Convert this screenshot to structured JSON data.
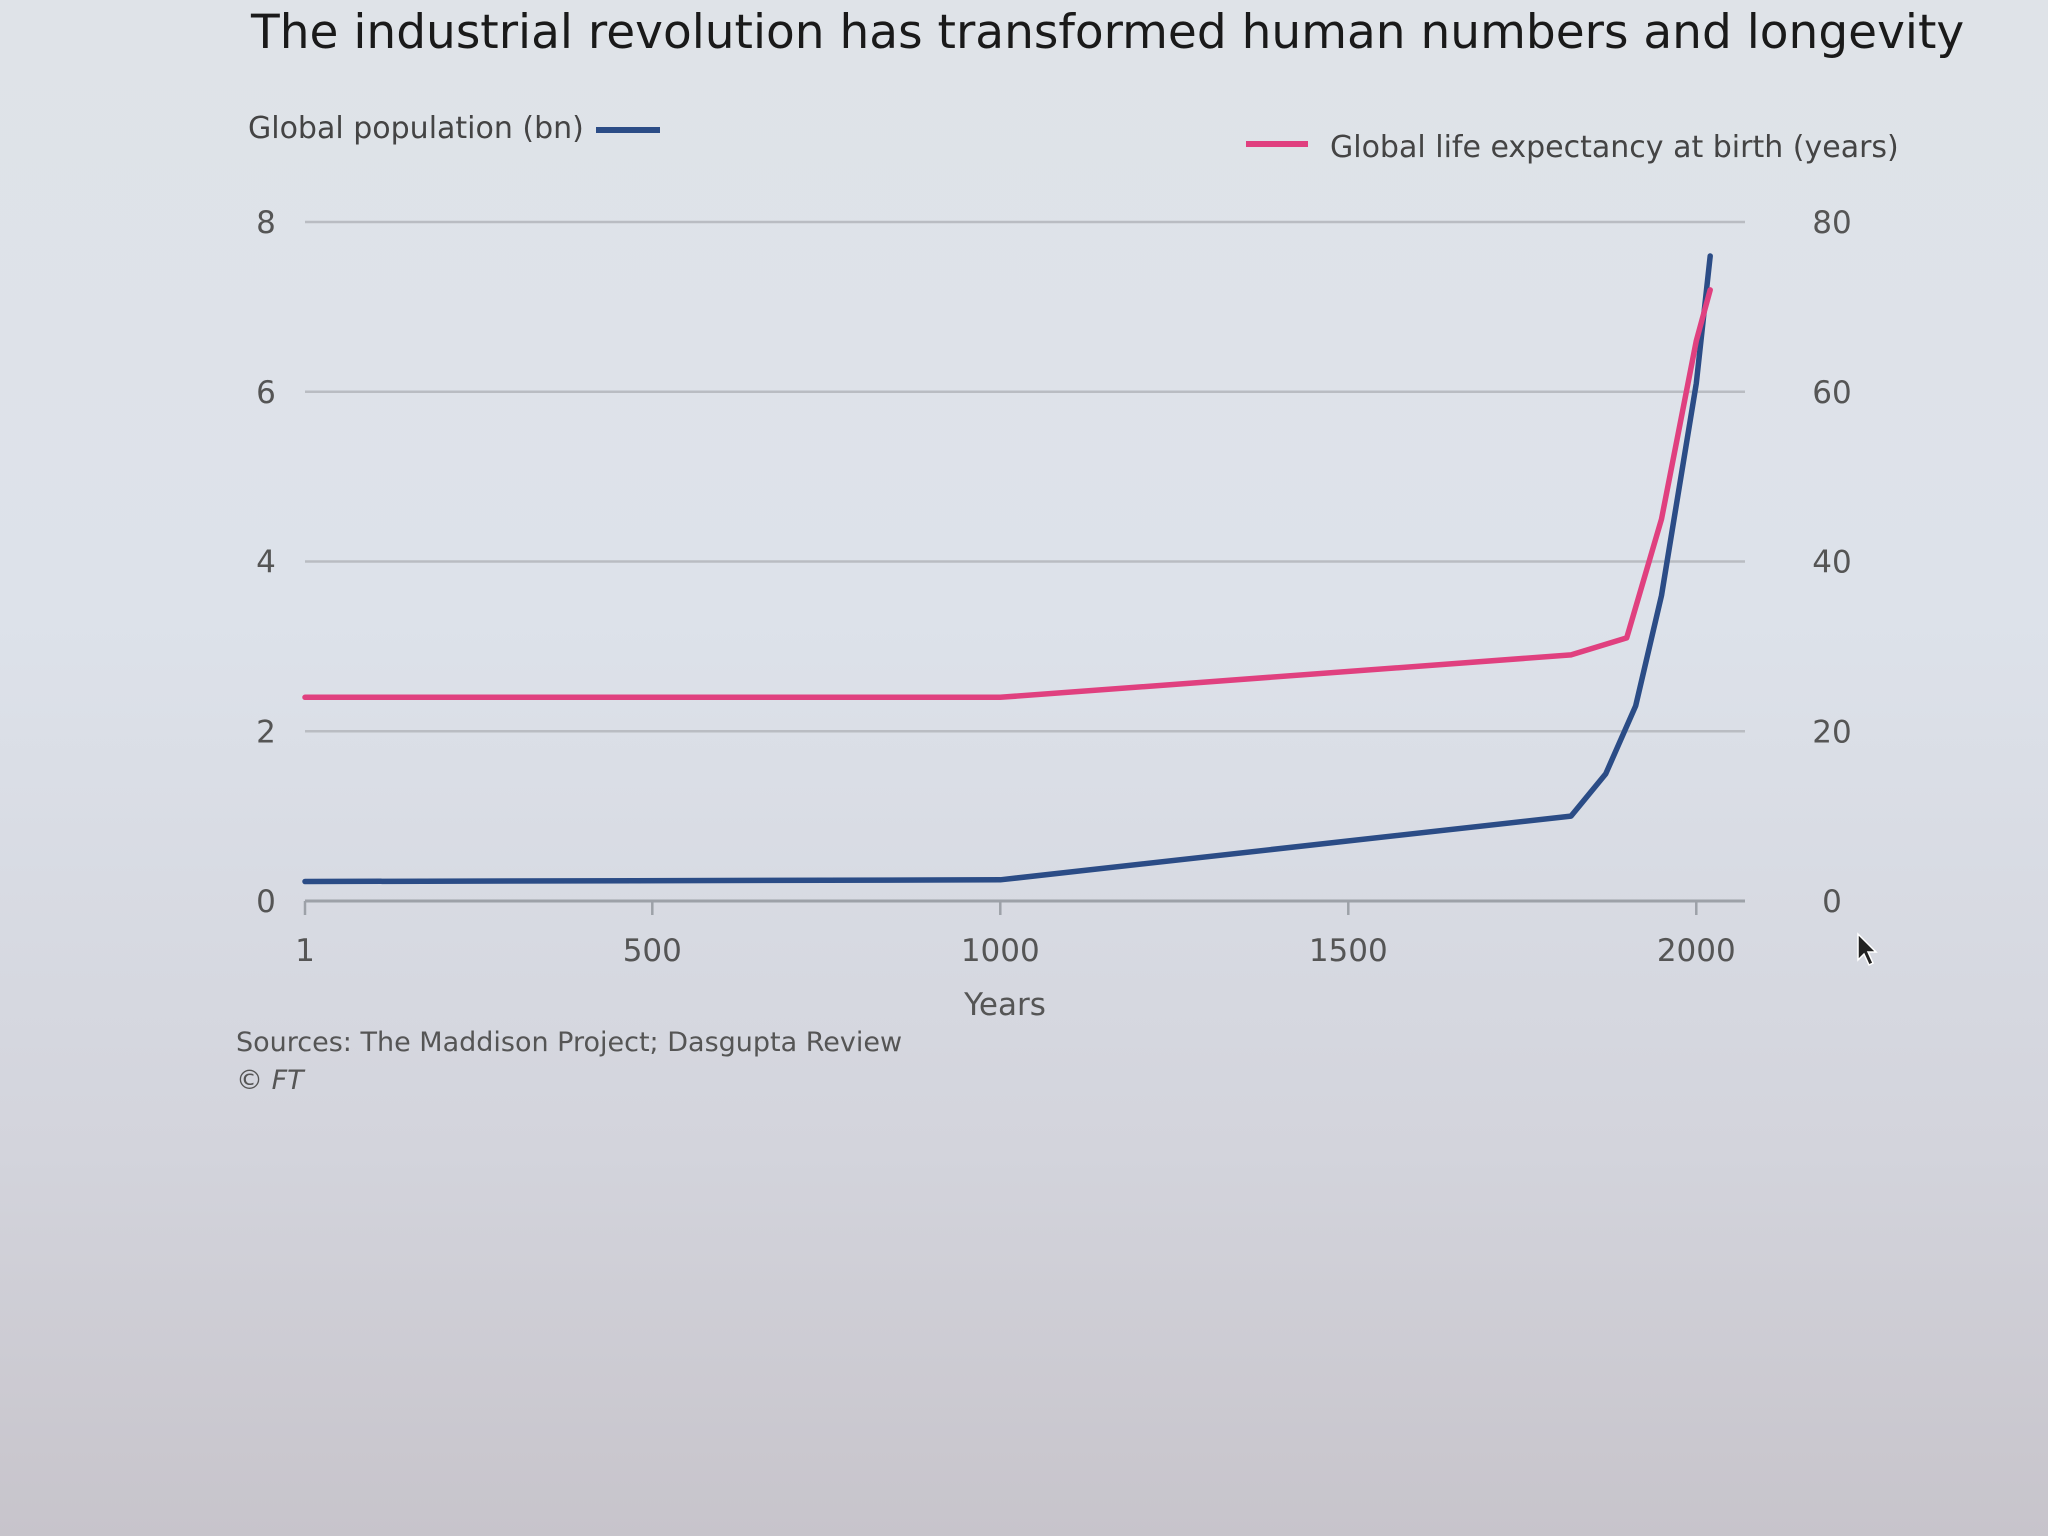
{
  "chart_data": {
    "type": "line",
    "title": "The industrial revolution has transformed human numbers and longevity",
    "xlabel": "Years",
    "xlim": [
      1,
      2070
    ],
    "x_ticks": [
      1,
      500,
      1000,
      1500,
      2000
    ],
    "x_tick_labels": [
      "1",
      "500",
      "1000",
      "1500",
      "2000"
    ],
    "y_left": {
      "label": "Global population (bn)",
      "ylim": [
        0,
        8
      ],
      "ticks": [
        0,
        2,
        4,
        6,
        8
      ],
      "tick_labels": [
        "0",
        "2",
        "4",
        "6",
        "8"
      ]
    },
    "y_right": {
      "label": "Global life expectancy at birth (years)",
      "ylim": [
        0,
        80
      ],
      "ticks": [
        0,
        20,
        40,
        60,
        80
      ],
      "tick_labels": [
        "0",
        "20",
        "40",
        "60",
        "80"
      ]
    },
    "grid": true,
    "series": [
      {
        "name": "Global population (bn)",
        "axis": "left",
        "color": "#2b4c86",
        "x": [
          1,
          1000,
          1820,
          1870,
          1913,
          1950,
          2000,
          2020
        ],
        "values": [
          0.23,
          0.25,
          1.0,
          1.5,
          2.3,
          3.6,
          6.1,
          7.6
        ]
      },
      {
        "name": "Global life expectancy at birth (years)",
        "axis": "right",
        "color": "#e0407f",
        "x": [
          1,
          1000,
          1820,
          1900,
          1950,
          2000,
          2020
        ],
        "values": [
          24,
          24,
          29,
          31,
          45,
          66,
          72
        ]
      }
    ],
    "legend": [
      {
        "label": "Global population (bn)",
        "position": "top-left"
      },
      {
        "label": "Global life expectancy at birth (years)",
        "position": "top-right"
      }
    ],
    "source": "Sources: The Maddison Project; Dasgupta Review",
    "credit": "© FT"
  }
}
